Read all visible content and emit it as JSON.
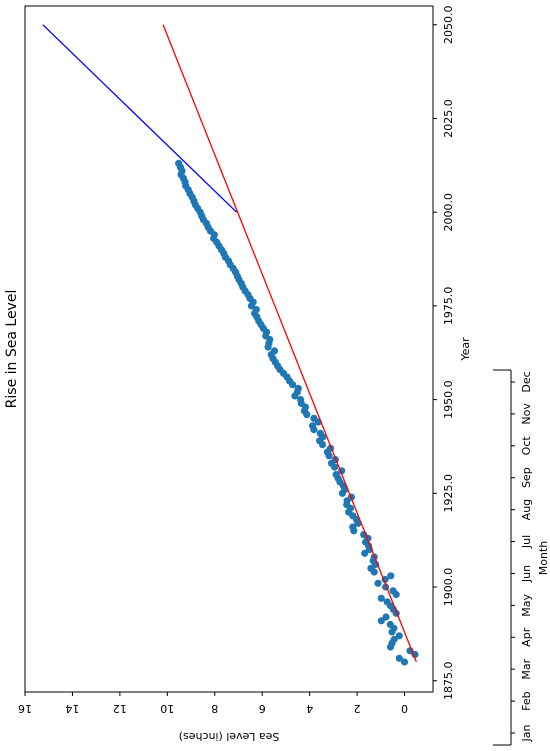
{
  "chart_data": [
    {
      "type": "scatter",
      "orientation": "rotated-90-clockwise",
      "title": "Rise in Sea Level",
      "xlabel": "Year",
      "ylabel": "Sea Level (inches)",
      "xlim": [
        1872,
        2055
      ],
      "ylim": [
        -1.2,
        16
      ],
      "x_ticks": [
        1875.0,
        1900.0,
        1925.0,
        1950.0,
        1975.0,
        2000.0,
        2025.0,
        2050.0
      ],
      "x_tick_labels": [
        "1875.0",
        "1900.0",
        "1925.0",
        "1950.0",
        "1975.0",
        "2000.0",
        "2025.0",
        "2050.0"
      ],
      "y_ticks": [
        0,
        2,
        4,
        6,
        8,
        10,
        12,
        14,
        16
      ],
      "y_tick_labels": [
        "0",
        "2",
        "4",
        "6",
        "8",
        "10",
        "12",
        "14",
        "16"
      ],
      "grid": false,
      "series": [
        {
          "kind": "scatter",
          "color": "#1f77b4",
          "x": [
            1880,
            1881,
            1882,
            1883,
            1884,
            1885,
            1886,
            1887,
            1888,
            1889,
            1890,
            1891,
            1892,
            1893,
            1894,
            1895,
            1896,
            1897,
            1898,
            1899,
            1900,
            1901,
            1902,
            1903,
            1904,
            1905,
            1906,
            1907,
            1908,
            1909,
            1910,
            1911,
            1912,
            1913,
            1914,
            1915,
            1916,
            1917,
            1918,
            1919,
            1920,
            1921,
            1922,
            1923,
            1924,
            1925,
            1926,
            1927,
            1928,
            1929,
            1930,
            1931,
            1932,
            1933,
            1934,
            1935,
            1936,
            1937,
            1938,
            1939,
            1940,
            1941,
            1942,
            1943,
            1944,
            1945,
            1946,
            1947,
            1948,
            1949,
            1950,
            1951,
            1952,
            1953,
            1954,
            1955,
            1956,
            1957,
            1958,
            1959,
            1960,
            1961,
            1962,
            1963,
            1964,
            1965,
            1966,
            1967,
            1968,
            1969,
            1970,
            1971,
            1972,
            1973,
            1974,
            1975,
            1976,
            1977,
            1978,
            1979,
            1980,
            1981,
            1982,
            1983,
            1984,
            1985,
            1986,
            1987,
            1988,
            1989,
            1990,
            1991,
            1992,
            1993,
            1994,
            1995,
            1996,
            1997,
            1998,
            1999,
            2000,
            2001,
            2002,
            2003,
            2004,
            2005,
            2006,
            2007,
            2008,
            2009,
            2010,
            2011,
            2012,
            2013
          ],
          "y": [
            0.0,
            0.22,
            -0.44,
            -0.23,
            0.59,
            0.53,
            0.44,
            0.22,
            0.53,
            0.45,
            0.6,
            0.98,
            0.78,
            0.35,
            0.47,
            0.59,
            0.73,
            0.98,
            0.35,
            0.48,
            0.8,
            1.12,
            0.82,
            0.58,
            1.28,
            1.42,
            1.22,
            1.32,
            1.28,
            1.68,
            1.48,
            1.52,
            1.64,
            1.54,
            1.72,
            2.14,
            2.18,
            1.96,
            2.02,
            2.18,
            2.36,
            2.28,
            2.44,
            2.42,
            2.24,
            2.62,
            2.52,
            2.58,
            2.72,
            2.8,
            2.88,
            2.65,
            2.95,
            3.08,
            2.92,
            3.18,
            3.25,
            3.12,
            3.46,
            3.58,
            3.45,
            3.55,
            3.82,
            3.88,
            3.64,
            3.82,
            4.12,
            4.22,
            4.18,
            4.35,
            4.38,
            4.62,
            4.52,
            4.48,
            4.72,
            4.85,
            4.95,
            5.1,
            5.25,
            5.35,
            5.45,
            5.55,
            5.62,
            5.48,
            5.75,
            5.72,
            5.68,
            5.85,
            5.82,
            5.95,
            6.05,
            6.15,
            6.22,
            6.32,
            6.25,
            6.45,
            6.38,
            6.52,
            6.6,
            6.72,
            6.82,
            6.88,
            6.98,
            7.05,
            7.12,
            7.22,
            7.35,
            7.42,
            7.55,
            7.62,
            7.72,
            7.82,
            7.92,
            8.05,
            8.02,
            8.18,
            8.28,
            8.35,
            8.48,
            8.55,
            8.62,
            8.72,
            8.82,
            8.88,
            8.95,
            9.05,
            9.12,
            9.22,
            9.25,
            9.32,
            9.42,
            9.38,
            9.45,
            9.52
          ]
        },
        {
          "kind": "line",
          "color": "#ff0000",
          "x": [
            1880,
            2050
          ],
          "y": [
            -0.5,
            10.18
          ]
        },
        {
          "kind": "line",
          "color": "#0000ff",
          "x": [
            2000,
            2050
          ],
          "y": [
            7.08,
            15.25
          ]
        }
      ]
    },
    {
      "type": "axis",
      "orientation": "rotated-90-clockwise",
      "xlabel": "Month",
      "x_tick_labels": [
        "Jan",
        "Feb",
        "Mar",
        "Apr",
        "May",
        "Jun",
        "Jul",
        "Aug",
        "Sep",
        "Oct",
        "Nov",
        "Dec"
      ]
    }
  ]
}
